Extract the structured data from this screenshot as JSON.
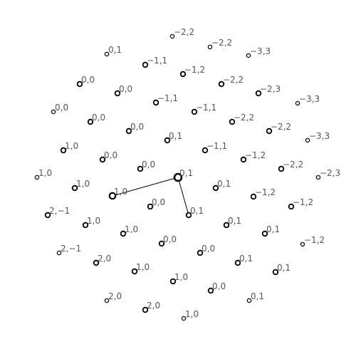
{
  "diagram": {
    "colors": {
      "stroke": "#000000",
      "label": "#555555",
      "background": "#ffffff"
    },
    "points": [
      {
        "label": "−2,2"
      },
      {
        "label": "−2,2"
      },
      {
        "label": "0,1"
      },
      {
        "label": "−3,3"
      },
      {
        "label": "−1,1"
      },
      {
        "label": "−1,2"
      },
      {
        "label": "0,0"
      },
      {
        "label": "−2,2"
      },
      {
        "label": "0,0"
      },
      {
        "label": "−2,3"
      },
      {
        "label": "−1,1"
      },
      {
        "label": "−3,3"
      },
      {
        "label": "0,0"
      },
      {
        "label": "−1,1"
      },
      {
        "label": "0,0"
      },
      {
        "label": "−2,2"
      },
      {
        "label": "0,0"
      },
      {
        "label": "−2,2"
      },
      {
        "label": "0,1"
      },
      {
        "label": "−3,3"
      },
      {
        "label": "1,0"
      },
      {
        "label": "−1,1"
      },
      {
        "label": "0,0"
      },
      {
        "label": "−1,2"
      },
      {
        "label": "0,0"
      },
      {
        "label": "−2,2"
      },
      {
        "label": "0,1"
      },
      {
        "label": "−2,3"
      },
      {
        "label": "1,0"
      },
      {
        "label": "1,0"
      },
      {
        "label": "1,0"
      },
      {
        "label": "0,1"
      },
      {
        "label": "−1,2"
      },
      {
        "label": "0,0"
      },
      {
        "label": "0,1"
      },
      {
        "label": "−1,2"
      },
      {
        "label": "2,−1"
      },
      {
        "label": "1,0"
      },
      {
        "label": "1,0"
      },
      {
        "label": "0,1"
      },
      {
        "label": "0,1"
      },
      {
        "label": "0,0"
      },
      {
        "label": "−1,2"
      },
      {
        "label": "2,−1"
      },
      {
        "label": "2,0"
      },
      {
        "label": "0,0"
      },
      {
        "label": "0,1"
      },
      {
        "label": "1,0"
      },
      {
        "label": "0,1"
      },
      {
        "label": "1,0"
      },
      {
        "label": "0,0"
      },
      {
        "label": "2,0"
      },
      {
        "label": "0,1"
      },
      {
        "label": "2,0"
      },
      {
        "label": "1,0"
      }
    ]
  }
}
